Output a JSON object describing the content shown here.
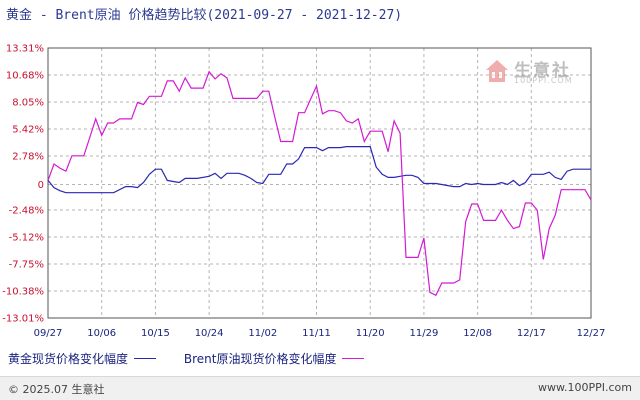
{
  "chart_data": {
    "type": "line",
    "title": "黄金 - Brent原油 价格趋势比较(2021-09-27 - 2021-12-27)",
    "yticks": [
      13.31,
      10.68,
      8.05,
      5.42,
      2.78,
      0,
      -2.48,
      -5.12,
      -7.75,
      -10.38,
      -13.01
    ],
    "ytick_labels": [
      "13.31%",
      "10.68%",
      "8.05%",
      "5.42%",
      "2.78%",
      "0",
      "-2.48%",
      "-5.12%",
      "-7.75%",
      "-10.38%",
      "-13.01%"
    ],
    "ylim": [
      -13.01,
      13.31
    ],
    "x_range": [
      0,
      91
    ],
    "xtick_labels": [
      "09/27",
      "10/06",
      "10/15",
      "10/24",
      "11/02",
      "11/11",
      "11/20",
      "11/29",
      "12/08",
      "12/17",
      "12/27"
    ],
    "xtick_positions": [
      0,
      9,
      18,
      27,
      36,
      45,
      54,
      63,
      72,
      81,
      91
    ],
    "grid": true,
    "legend_position": "bottom",
    "series": [
      {
        "name": "黄金现货价格变化幅度",
        "color": "#2929b3",
        "x": [
          0,
          1,
          2,
          3,
          6,
          8,
          9,
          10,
          11,
          13,
          14,
          15,
          16,
          17,
          18,
          19,
          20,
          21,
          22,
          23,
          24,
          25,
          27,
          28,
          29,
          30,
          32,
          33,
          34,
          35,
          36,
          37,
          38,
          39,
          40,
          41,
          42,
          43,
          44,
          45,
          46,
          47,
          48,
          49,
          50,
          51,
          52,
          53,
          54,
          55,
          56,
          57,
          58,
          59,
          60,
          61,
          62,
          63,
          64,
          65,
          66,
          67,
          68,
          69,
          70,
          71,
          72,
          73,
          74,
          75,
          76,
          77,
          78,
          79,
          80,
          81,
          82,
          83,
          84,
          85,
          86,
          87,
          88,
          89,
          90,
          91
        ],
        "y": [
          0.4,
          -0.3,
          -0.6,
          -0.8,
          -0.8,
          -0.8,
          -0.8,
          -0.8,
          -0.8,
          -0.2,
          -0.2,
          -0.3,
          0.2,
          1.0,
          1.5,
          1.5,
          0.4,
          0.3,
          0.2,
          0.6,
          0.6,
          0.6,
          0.8,
          1.1,
          0.6,
          1.1,
          1.1,
          0.9,
          0.6,
          0.2,
          0.1,
          1.0,
          1.0,
          1.0,
          2.0,
          2.0,
          2.5,
          3.6,
          3.6,
          3.6,
          3.3,
          3.6,
          3.6,
          3.6,
          3.7,
          3.7,
          3.7,
          3.7,
          3.7,
          1.7,
          1.0,
          0.7,
          0.7,
          0.8,
          0.9,
          0.9,
          0.7,
          0.1,
          0.1,
          0.1,
          0.0,
          -0.1,
          -0.2,
          -0.2,
          0.1,
          0.0,
          0.1,
          0.0,
          0.0,
          0.0,
          0.2,
          0.0,
          0.4,
          -0.1,
          0.2,
          1.0,
          1.0,
          1.0,
          1.2,
          0.7,
          0.5,
          1.3,
          1.5,
          1.5,
          1.5,
          1.5
        ]
      },
      {
        "name": "Brent原油现货价格变化幅度",
        "color": "#d41bd4",
        "x": [
          0,
          1,
          2,
          3,
          4,
          5,
          6,
          7,
          8,
          9,
          10,
          11,
          12,
          13,
          14,
          15,
          16,
          17,
          18,
          19,
          20,
          21,
          22,
          23,
          24,
          25,
          26,
          27,
          28,
          29,
          30,
          31,
          32,
          33,
          34,
          35,
          36,
          37,
          38,
          39,
          40,
          41,
          42,
          43,
          44,
          45,
          46,
          47,
          48,
          49,
          50,
          51,
          52,
          53,
          54,
          55,
          56,
          57,
          58,
          59,
          60,
          61,
          62,
          63,
          64,
          65,
          66,
          67,
          68,
          69,
          70,
          71,
          72,
          73,
          74,
          75,
          76,
          77,
          78,
          79,
          80,
          81,
          82,
          83,
          84,
          85,
          86,
          87,
          88,
          89,
          90,
          91
        ],
        "y": [
          0.4,
          2.0,
          1.6,
          1.3,
          2.8,
          2.8,
          2.8,
          4.6,
          6.4,
          4.8,
          6.0,
          6.0,
          6.4,
          6.4,
          6.4,
          8.0,
          7.8,
          8.6,
          8.6,
          8.6,
          10.1,
          10.1,
          9.1,
          10.4,
          9.4,
          9.4,
          9.4,
          11.0,
          10.3,
          10.8,
          10.4,
          8.4,
          8.4,
          8.4,
          8.4,
          8.4,
          9.1,
          9.1,
          6.6,
          4.2,
          4.2,
          4.2,
          7.0,
          7.0,
          8.3,
          9.6,
          6.9,
          7.2,
          7.2,
          7.0,
          6.2,
          6.0,
          6.4,
          4.2,
          5.2,
          5.2,
          5.2,
          3.2,
          6.2,
          5.0,
          -7.1,
          -7.1,
          -7.1,
          -5.2,
          -10.5,
          -10.8,
          -9.6,
          -9.6,
          -9.6,
          -9.3,
          -3.6,
          -1.9,
          -1.9,
          -3.5,
          -3.5,
          -3.5,
          -2.5,
          -3.5,
          -4.3,
          -4.1,
          -1.8,
          -1.8,
          -2.5,
          -7.3,
          -4.3,
          -3.0,
          -0.5,
          -0.5,
          -0.5,
          -0.5,
          -0.5,
          -1.5
        ]
      }
    ]
  },
  "footer": {
    "copyright": "© 2025.07 生意社",
    "site": "www.100PPI.com"
  },
  "watermark": {
    "name": "生意社",
    "url": "100PPI.COM"
  }
}
